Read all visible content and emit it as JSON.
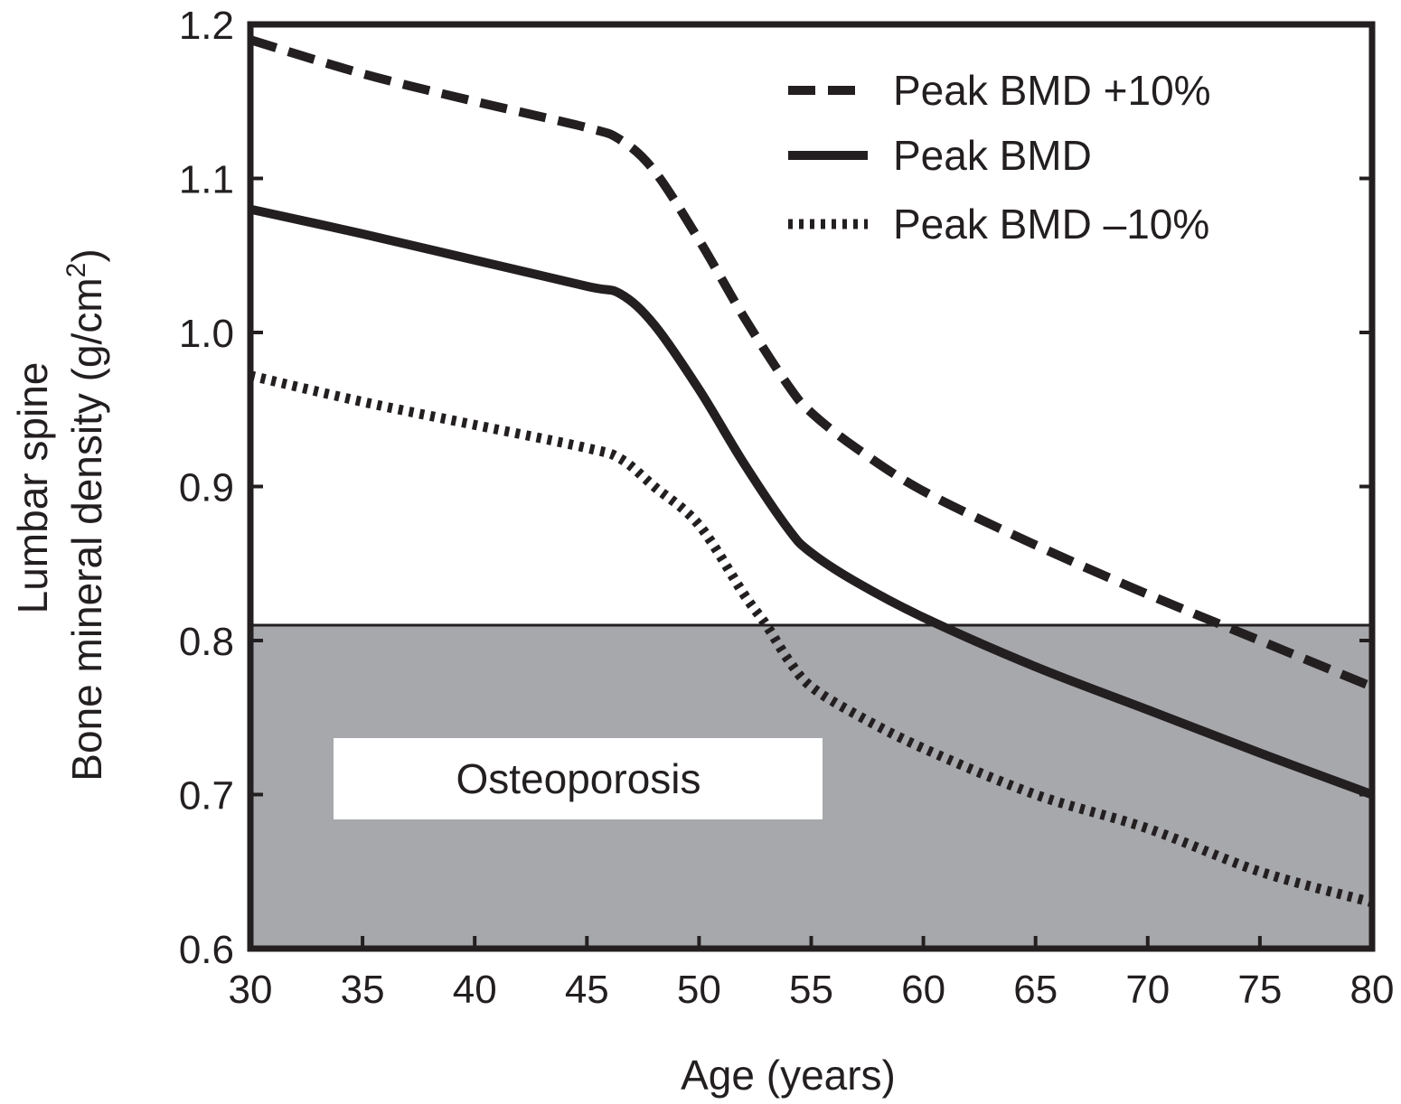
{
  "chart_data": {
    "type": "line",
    "title": "",
    "xlabel": "Age (years)",
    "ylabel_lines": [
      "Lumbar spine",
      "Bone mineral density (g/cm",
      "2",
      ")"
    ],
    "xlim": [
      30,
      80
    ],
    "ylim": [
      0.6,
      1.2
    ],
    "xticks": [
      30,
      35,
      40,
      45,
      50,
      55,
      60,
      65,
      70,
      75,
      80
    ],
    "yticks": [
      "0.6",
      "0.7",
      "0.8",
      "0.9",
      "1.0",
      "1.1",
      "1.2"
    ],
    "grid": false,
    "legend_position": "top-right",
    "threshold": {
      "value": 0.81,
      "region_label": "Osteoporosis",
      "fill": "#a7a8ab"
    },
    "series": [
      {
        "name": "Peak BMD +10%",
        "style": "dashed",
        "x": [
          30,
          35,
          40,
          45,
          46.5,
          48,
          50,
          52,
          54,
          55,
          57,
          60,
          65,
          70,
          75,
          80
        ],
        "y": [
          1.19,
          1.168,
          1.15,
          1.133,
          1.125,
          1.105,
          1.06,
          1.01,
          0.965,
          0.948,
          0.925,
          0.897,
          0.862,
          0.83,
          0.8,
          0.77
        ]
      },
      {
        "name": "Peak BMD",
        "style": "solid",
        "x": [
          30,
          35,
          40,
          45,
          46.5,
          48,
          50,
          52,
          54,
          55,
          57,
          60,
          65,
          70,
          75,
          80
        ],
        "y": [
          1.08,
          1.064,
          1.047,
          1.03,
          1.025,
          1.005,
          0.963,
          0.915,
          0.872,
          0.857,
          0.838,
          0.815,
          0.783,
          0.755,
          0.727,
          0.7
        ]
      },
      {
        "name": "Peak BMD –10%",
        "style": "dotted",
        "x": [
          30,
          35,
          40,
          45,
          46.5,
          48,
          50,
          52,
          53,
          54,
          55,
          57,
          60,
          65,
          70,
          75,
          80
        ],
        "y": [
          0.972,
          0.955,
          0.94,
          0.925,
          0.918,
          0.9,
          0.875,
          0.83,
          0.81,
          0.787,
          0.77,
          0.752,
          0.73,
          0.7,
          0.678,
          0.65,
          0.63
        ]
      }
    ]
  }
}
